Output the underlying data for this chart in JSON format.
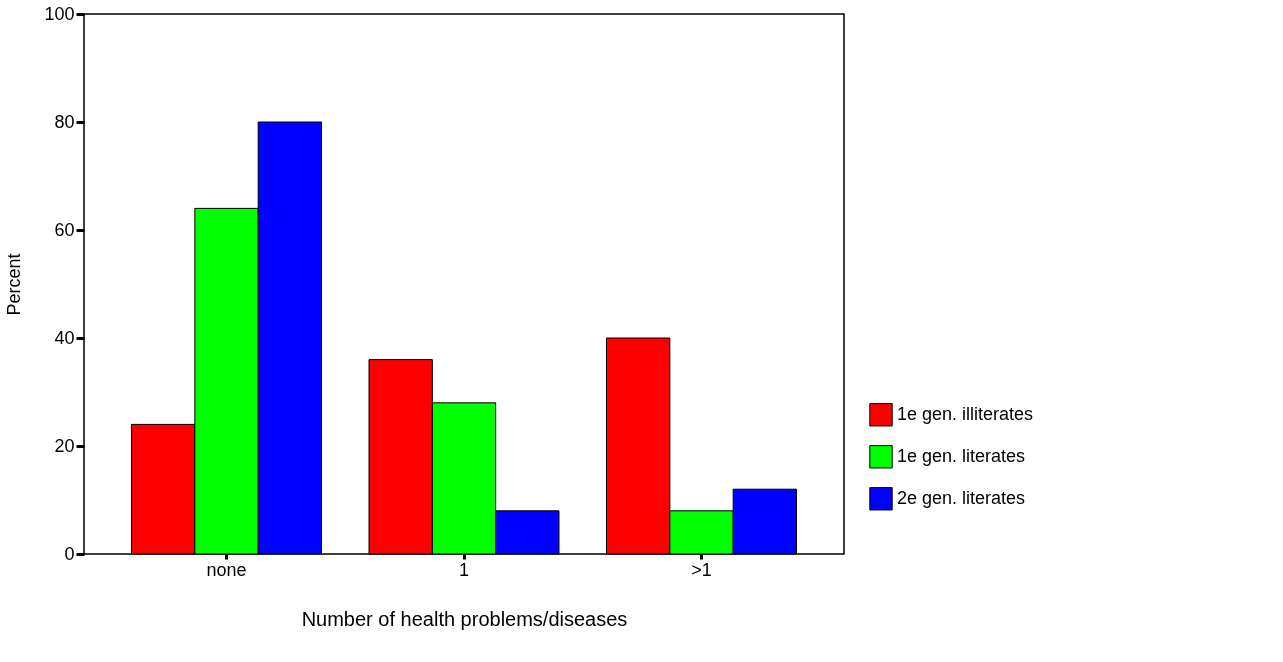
{
  "chart_data": {
    "type": "bar",
    "xlabel": "Number of health problems/diseases",
    "ylabel": "Percent",
    "categories": [
      "none",
      "1",
      ">1"
    ],
    "series": [
      {
        "name": "1e gen. illiterates",
        "color": "#ff0000",
        "values": [
          24,
          36,
          40
        ]
      },
      {
        "name": "1e gen. literates",
        "color": "#00ff00",
        "values": [
          64,
          28,
          8
        ]
      },
      {
        "name": "2e gen. literates",
        "color": "#0000ff",
        "values": [
          80,
          8,
          12
        ]
      }
    ],
    "ylim": [
      0,
      100
    ],
    "yticks": [
      0,
      20,
      40,
      60,
      80,
      100
    ],
    "grid": false,
    "legend": "right"
  }
}
